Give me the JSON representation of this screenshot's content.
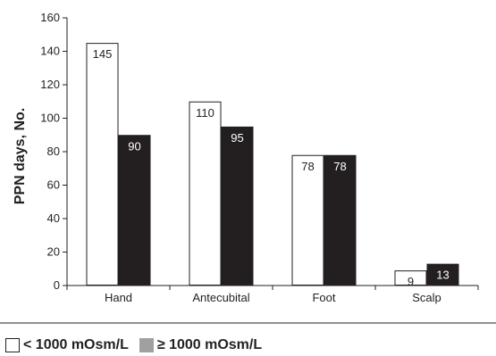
{
  "chart_data": {
    "type": "bar",
    "categories": [
      "Hand",
      "Antecubital",
      "Foot",
      "Scalp"
    ],
    "series": [
      {
        "name": "< 1000 mOsm/L",
        "values": [
          145,
          110,
          78,
          9
        ],
        "color": "#ffffff",
        "stroke": "#231f20"
      },
      {
        "name": "≥ 1000 mOsm/L",
        "values": [
          90,
          95,
          78,
          13
        ],
        "color": "#231f20"
      }
    ],
    "ylabel": "PPN days, No.",
    "xlabel": "",
    "ylim": [
      0,
      160
    ],
    "yticks": [
      0,
      20,
      40,
      60,
      80,
      100,
      120,
      140,
      160
    ],
    "grid": false,
    "legend_position": "bottom-left",
    "legend_swatch_colors": [
      "#ffffff",
      "#a0a0a0"
    ]
  }
}
